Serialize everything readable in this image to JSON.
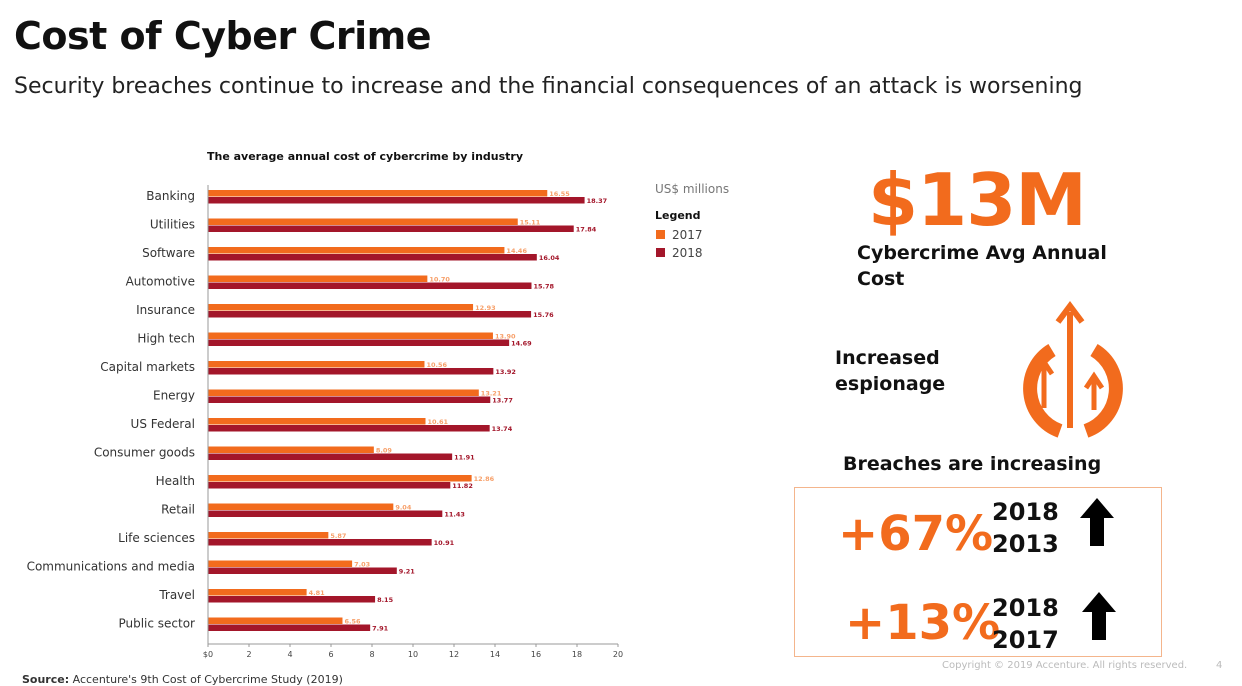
{
  "header": {
    "title": "Cost of Cyber Crime",
    "subtitle": "Security breaches continue to increase and the financial consequences of an attack is worsening"
  },
  "chart_data": {
    "type": "bar",
    "orientation": "horizontal",
    "title": "The average annual cost of cybercrime by industry",
    "unit_label": "US$ millions",
    "legend_title": "Legend",
    "legend_position": "right",
    "categories": [
      "Banking",
      "Utilities",
      "Software",
      "Automotive",
      "Insurance",
      "High tech",
      "Capital markets",
      "Energy",
      "US Federal",
      "Consumer goods",
      "Health",
      "Retail",
      "Life sciences",
      "Communications and media",
      "Travel",
      "Public sector"
    ],
    "series": [
      {
        "name": "2017",
        "color": "#f26b1d",
        "values": [
          16.55,
          15.11,
          14.46,
          10.7,
          12.93,
          13.9,
          10.56,
          13.21,
          10.61,
          8.09,
          12.86,
          9.04,
          5.87,
          7.03,
          4.81,
          6.56
        ]
      },
      {
        "name": "2018",
        "color": "#a3162a",
        "values": [
          18.37,
          17.84,
          16.04,
          15.78,
          15.76,
          14.69,
          13.92,
          13.77,
          13.74,
          11.91,
          11.82,
          11.43,
          10.91,
          9.21,
          8.15,
          7.91
        ]
      }
    ],
    "xlim": [
      0,
      20
    ],
    "x_ticks": [
      "$0",
      "2",
      "4",
      "6",
      "8",
      "10",
      "12",
      "14",
      "16",
      "18",
      "20"
    ],
    "grid": false
  },
  "highlights": {
    "big_cost": "$13M",
    "cost_label": "Cybercrime Avg Annual Cost",
    "espionage_label": [
      "Increased",
      "espionage"
    ],
    "breaches_heading": "Breaches are increasing",
    "stats": [
      {
        "pct": "+67%",
        "year_top": "2018",
        "year_bottom": "2013"
      },
      {
        "pct": "+13%",
        "year_top": "2018",
        "year_bottom": "2017"
      }
    ]
  },
  "footer": {
    "source_label": "Source:",
    "source_text": "Accenture's 9th Cost of Cybercrime Study (2019)",
    "copyright": "Copyright © 2019 Accenture. All rights reserved.",
    "page_number": "4"
  },
  "colors": {
    "accent": "#f26b1d",
    "dark_red": "#a3162a",
    "text": "#111111"
  }
}
